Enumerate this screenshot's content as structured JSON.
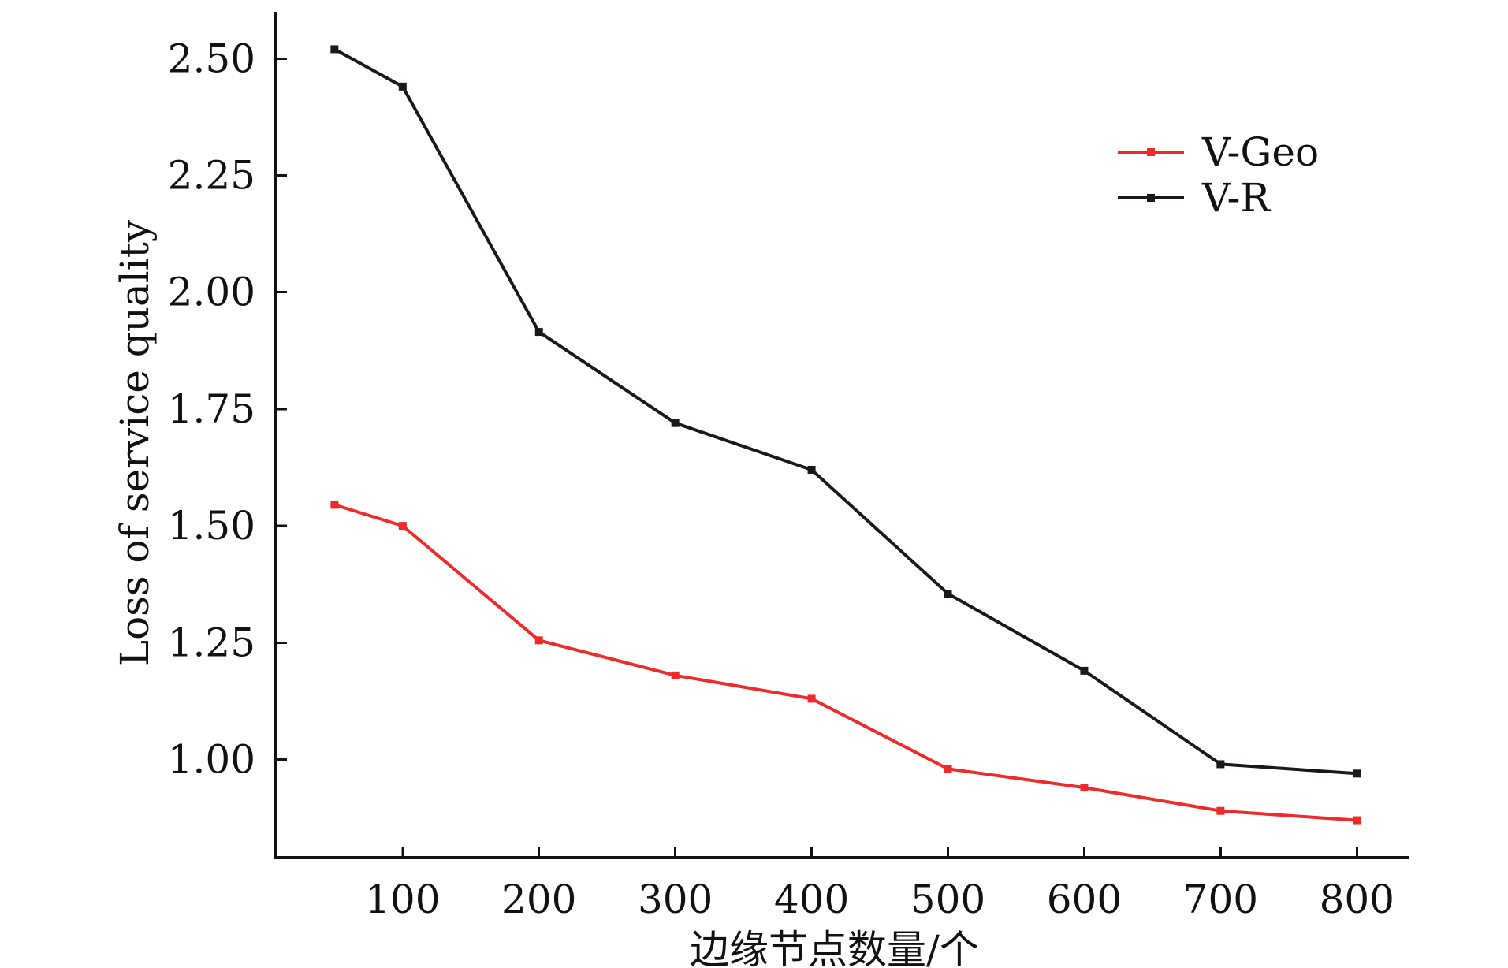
{
  "colors": {
    "v_geo": "#ee2a2a",
    "v_r": "#1c1818",
    "axis": "#111111",
    "background": "#ffffff"
  },
  "chart_data": {
    "type": "line",
    "xlabel": "边缘节点数量/个",
    "ylabel": "Loss of service quality",
    "x": [
      50,
      100,
      200,
      300,
      400,
      500,
      600,
      700,
      800
    ],
    "xticks": [
      100,
      200,
      300,
      400,
      500,
      600,
      700,
      800
    ],
    "xtick_labels": [
      "100",
      "200",
      "300",
      "400",
      "500",
      "600",
      "700",
      "800"
    ],
    "xlim": [
      7,
      838
    ],
    "yticks": [
      1.0,
      1.25,
      1.5,
      1.75,
      2.0,
      2.25,
      2.5
    ],
    "ytick_labels": [
      "1.00",
      "1.25",
      "1.50",
      "1.75",
      "2.00",
      "2.25",
      "2.50"
    ],
    "ylim": [
      0.79,
      2.6
    ],
    "grid": false,
    "legend_position": "top-right",
    "series": [
      {
        "name": "V-Geo",
        "color": "#ee2a2a",
        "values": [
          1.545,
          1.5,
          1.255,
          1.18,
          1.13,
          0.98,
          0.94,
          0.89,
          0.87
        ]
      },
      {
        "name": "V-R",
        "color": "#1c1818",
        "values": [
          2.52,
          2.44,
          1.915,
          1.72,
          1.62,
          1.355,
          1.19,
          0.99,
          0.97
        ]
      }
    ]
  }
}
